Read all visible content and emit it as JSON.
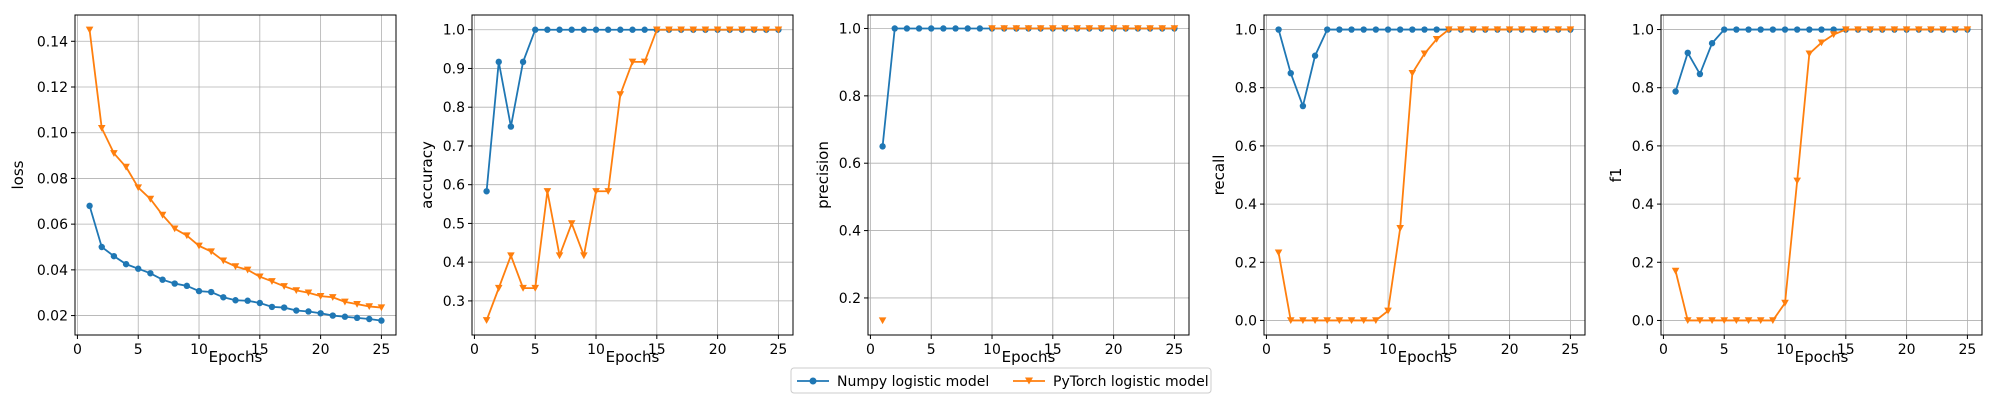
{
  "legend": {
    "items": [
      {
        "label": "Numpy logistic model",
        "color": "#1f77b4",
        "marker": "circle"
      },
      {
        "label": "PyTorch logistic model",
        "color": "#ff7f0e",
        "marker": "triangle-down"
      }
    ]
  },
  "chart_data": [
    {
      "type": "line",
      "xlabel": "Epochs",
      "ylabel": "loss",
      "xlim": [
        -0.2,
        26.2
      ],
      "ylim": [
        0.0115,
        0.1515
      ],
      "xticks": [
        0,
        5,
        10,
        15,
        20,
        25
      ],
      "yticks": [
        0.02,
        0.04,
        0.06,
        0.08,
        0.1,
        0.12,
        0.14
      ],
      "ytick_labels": [
        "0.02",
        "0.04",
        "0.06",
        "0.08",
        "0.10",
        "0.12",
        "0.14"
      ],
      "grid": true,
      "x": [
        1,
        2,
        3,
        4,
        5,
        6,
        7,
        8,
        9,
        10,
        11,
        12,
        13,
        14,
        15,
        16,
        17,
        18,
        19,
        20,
        21,
        22,
        23,
        24,
        25
      ],
      "series": [
        {
          "name": "Numpy logistic model",
          "color": "#1f77b4",
          "marker": "circle",
          "values": [
            0.068,
            0.05,
            0.046,
            0.0425,
            0.0405,
            0.0385,
            0.0357,
            0.034,
            0.033,
            0.0307,
            0.0303,
            0.028,
            0.0267,
            0.0265,
            0.0255,
            0.0238,
            0.0235,
            0.0222,
            0.0218,
            0.021,
            0.02,
            0.0195,
            0.019,
            0.0185,
            0.0178
          ]
        },
        {
          "name": "PyTorch logistic model",
          "color": "#ff7f0e",
          "marker": "triangle-down",
          "values": [
            0.145,
            0.102,
            0.091,
            0.085,
            0.076,
            0.071,
            0.064,
            0.058,
            0.055,
            0.0505,
            0.048,
            0.044,
            0.0415,
            0.04,
            0.037,
            0.035,
            0.0328,
            0.031,
            0.03,
            0.0285,
            0.028,
            0.026,
            0.025,
            0.024,
            0.0235
          ]
        }
      ]
    },
    {
      "type": "line",
      "xlabel": "Epochs",
      "ylabel": "accuracy",
      "xlim": [
        -0.2,
        26.2
      ],
      "ylim": [
        0.212,
        1.038
      ],
      "xticks": [
        0,
        5,
        10,
        15,
        20,
        25
      ],
      "yticks": [
        0.3,
        0.4,
        0.5,
        0.6,
        0.7,
        0.8,
        0.9,
        1.0
      ],
      "ytick_labels": [
        "0.3",
        "0.4",
        "0.5",
        "0.6",
        "0.7",
        "0.8",
        "0.9",
        "1.0"
      ],
      "grid": true,
      "x": [
        1,
        2,
        3,
        4,
        5,
        6,
        7,
        8,
        9,
        10,
        11,
        12,
        13,
        14,
        15,
        16,
        17,
        18,
        19,
        20,
        21,
        22,
        23,
        24,
        25
      ],
      "series": [
        {
          "name": "Numpy logistic model",
          "color": "#1f77b4",
          "marker": "circle",
          "values": [
            0.583,
            0.917,
            0.75,
            0.917,
            1,
            1,
            1,
            1,
            1,
            1,
            1,
            1,
            1,
            1,
            1,
            1,
            1,
            1,
            1,
            1,
            1,
            1,
            1,
            1,
            1
          ]
        },
        {
          "name": "PyTorch logistic model",
          "color": "#ff7f0e",
          "marker": "triangle-down",
          "values": [
            0.25,
            0.333,
            0.417,
            0.333,
            0.333,
            0.583,
            0.417,
            0.5,
            0.417,
            0.583,
            0.583,
            0.833,
            0.917,
            0.917,
            1,
            1,
            1,
            1,
            1,
            1,
            1,
            1,
            1,
            1,
            1
          ]
        }
      ]
    },
    {
      "type": "line",
      "xlabel": "Epochs",
      "ylabel": "precision",
      "xlim": [
        -0.2,
        26.2
      ],
      "ylim": [
        0.09,
        1.04
      ],
      "xticks": [
        0,
        5,
        10,
        15,
        20,
        25
      ],
      "yticks": [
        0.2,
        0.4,
        0.6,
        0.8,
        1.0
      ],
      "ytick_labels": [
        "0.2",
        "0.4",
        "0.6",
        "0.8",
        "1.0"
      ],
      "grid": true,
      "x": [
        1,
        2,
        3,
        4,
        5,
        6,
        7,
        8,
        9,
        10,
        11,
        12,
        13,
        14,
        15,
        16,
        17,
        18,
        19,
        20,
        21,
        22,
        23,
        24,
        25
      ],
      "series": [
        {
          "name": "Numpy logistic model",
          "color": "#1f77b4",
          "marker": "circle",
          "values": [
            0.65,
            1,
            1,
            1,
            1,
            1,
            1,
            1,
            1,
            1,
            1,
            1,
            1,
            1,
            1,
            1,
            1,
            1,
            1,
            1,
            1,
            1,
            1,
            1,
            1
          ]
        },
        {
          "name": "PyTorch logistic model",
          "color": "#ff7f0e",
          "marker": "triangle-down",
          "values": [
            0.133,
            null,
            null,
            null,
            null,
            null,
            null,
            null,
            null,
            1,
            1,
            1,
            1,
            1,
            1,
            1,
            1,
            1,
            1,
            1,
            1,
            1,
            1,
            1,
            1
          ]
        }
      ]
    },
    {
      "type": "line",
      "xlabel": "Epochs",
      "ylabel": "recall",
      "xlim": [
        -0.2,
        26.2
      ],
      "ylim": [
        -0.05,
        1.05
      ],
      "xticks": [
        0,
        5,
        10,
        15,
        20,
        25
      ],
      "yticks": [
        0.0,
        0.2,
        0.4,
        0.6,
        0.8,
        1.0
      ],
      "ytick_labels": [
        "0.0",
        "0.2",
        "0.4",
        "0.6",
        "0.8",
        "1.0"
      ],
      "grid": true,
      "x": [
        1,
        2,
        3,
        4,
        5,
        6,
        7,
        8,
        9,
        10,
        11,
        12,
        13,
        14,
        15,
        16,
        17,
        18,
        19,
        20,
        21,
        22,
        23,
        24,
        25
      ],
      "series": [
        {
          "name": "Numpy logistic model",
          "color": "#1f77b4",
          "marker": "circle",
          "values": [
            1,
            0.85,
            0.737,
            0.91,
            1,
            1,
            1,
            1,
            1,
            1,
            1,
            1,
            1,
            1,
            1,
            1,
            1,
            1,
            1,
            1,
            1,
            1,
            1,
            1,
            1
          ]
        },
        {
          "name": "PyTorch logistic model",
          "color": "#ff7f0e",
          "marker": "triangle-down",
          "values": [
            0.233,
            0,
            0,
            0,
            0,
            0,
            0,
            0,
            0,
            0.033,
            0.317,
            0.85,
            0.917,
            0.967,
            1,
            1,
            1,
            1,
            1,
            1,
            1,
            1,
            1,
            1,
            1
          ]
        }
      ]
    },
    {
      "type": "line",
      "xlabel": "Epochs",
      "ylabel": "f1",
      "xlim": [
        -0.2,
        26.2
      ],
      "ylim": [
        -0.05,
        1.05
      ],
      "xticks": [
        0,
        5,
        10,
        15,
        20,
        25
      ],
      "yticks": [
        0.0,
        0.2,
        0.4,
        0.6,
        0.8,
        1.0
      ],
      "ytick_labels": [
        "0.0",
        "0.2",
        "0.4",
        "0.6",
        "0.8",
        "1.0"
      ],
      "grid": true,
      "x": [
        1,
        2,
        3,
        4,
        5,
        6,
        7,
        8,
        9,
        10,
        11,
        12,
        13,
        14,
        15,
        16,
        17,
        18,
        19,
        20,
        21,
        22,
        23,
        24,
        25
      ],
      "series": [
        {
          "name": "Numpy logistic model",
          "color": "#1f77b4",
          "marker": "circle",
          "values": [
            0.787,
            0.92,
            0.847,
            0.953,
            1,
            1,
            1,
            1,
            1,
            1,
            1,
            1,
            1,
            1,
            1,
            1,
            1,
            1,
            1,
            1,
            1,
            1,
            1,
            1,
            1
          ]
        },
        {
          "name": "PyTorch logistic model",
          "color": "#ff7f0e",
          "marker": "triangle-down",
          "values": [
            0.17,
            0,
            0,
            0,
            0,
            0,
            0,
            0,
            0,
            0.06,
            0.48,
            0.917,
            0.955,
            0.983,
            1,
            1,
            1,
            1,
            1,
            1,
            1,
            1,
            1,
            1,
            1
          ]
        }
      ]
    }
  ]
}
